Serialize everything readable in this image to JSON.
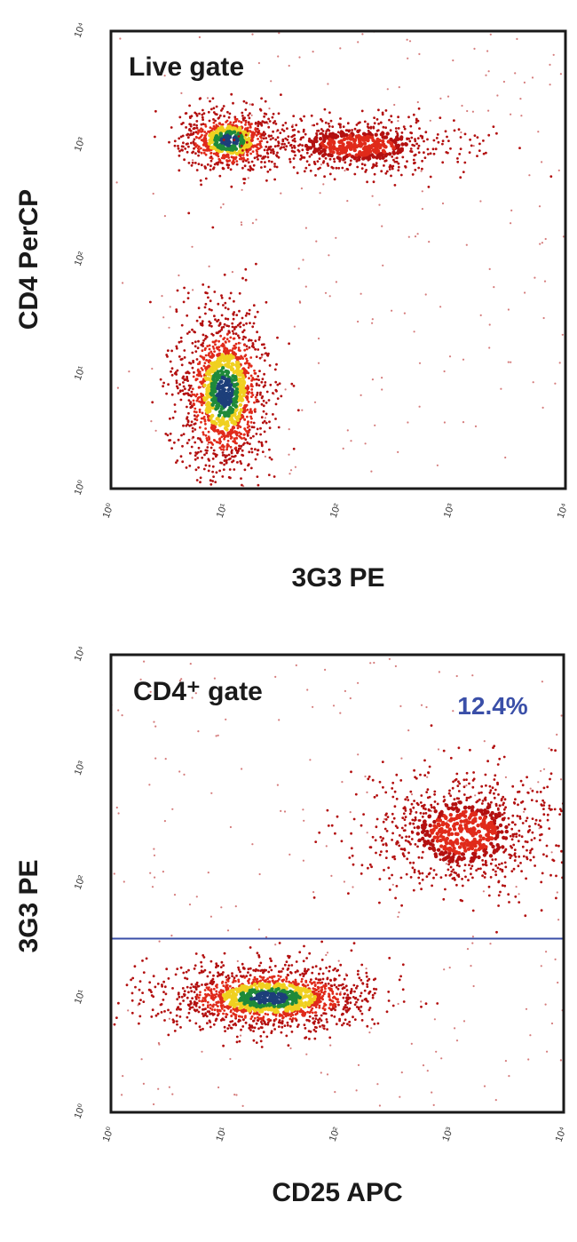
{
  "chart_data": [
    {
      "type": "scatter",
      "plot_style": "flow cytometry density dot plot",
      "gate_label": "Live gate",
      "xlabel": "3G3 PE",
      "ylabel": "CD4 PerCP",
      "x_scale": "log",
      "y_scale": "log",
      "xlim": [
        1,
        10000
      ],
      "ylim": [
        1,
        10000
      ],
      "x_ticks": [
        "10⁰",
        "10¹",
        "10²",
        "10³",
        "10⁴"
      ],
      "y_ticks": [
        "10⁰",
        "10¹",
        "10²",
        "10³",
        "10⁴"
      ],
      "grid": false,
      "populations": [
        {
          "description": "CD4- 3G3-",
          "x_center": 10,
          "y_center": 7,
          "density": "high"
        },
        {
          "description": "CD4+ 3G3-",
          "x_center": 11,
          "y_center": 1100,
          "density": "high"
        },
        {
          "description": "CD4+ 3G3+",
          "x_center": 150,
          "y_center": 1000,
          "density": "medium"
        }
      ]
    },
    {
      "type": "scatter",
      "plot_style": "flow cytometry density dot plot",
      "gate_label": "CD4⁺ gate",
      "xlabel": "CD25 APC",
      "ylabel": "3G3 PE",
      "x_scale": "log",
      "y_scale": "log",
      "xlim": [
        1,
        10000
      ],
      "ylim": [
        1,
        10000
      ],
      "x_ticks": [
        "10⁰",
        "10¹",
        "10²",
        "10³",
        "10⁴"
      ],
      "y_ticks": [
        "10⁰",
        "10¹",
        "10²",
        "10³",
        "10⁴"
      ],
      "grid": false,
      "gate_threshold_y": 33,
      "gate_line_color": "#3a4fa8",
      "gate_percentage": "12.4%",
      "gate_percentage_color": "#3a4fa8",
      "populations": [
        {
          "description": "CD25- 3G3-",
          "x_center": 25,
          "y_center": 10,
          "density": "high"
        },
        {
          "description": "CD25+ 3G3+",
          "x_center": 1300,
          "y_center": 280,
          "density": "medium"
        }
      ]
    }
  ],
  "colors": {
    "density_low": "#b31010",
    "density_mid": "#e02a1a",
    "density_high": "#f0d020",
    "density_peak": "#1f8a3a",
    "density_core": "#1d3f7a"
  }
}
